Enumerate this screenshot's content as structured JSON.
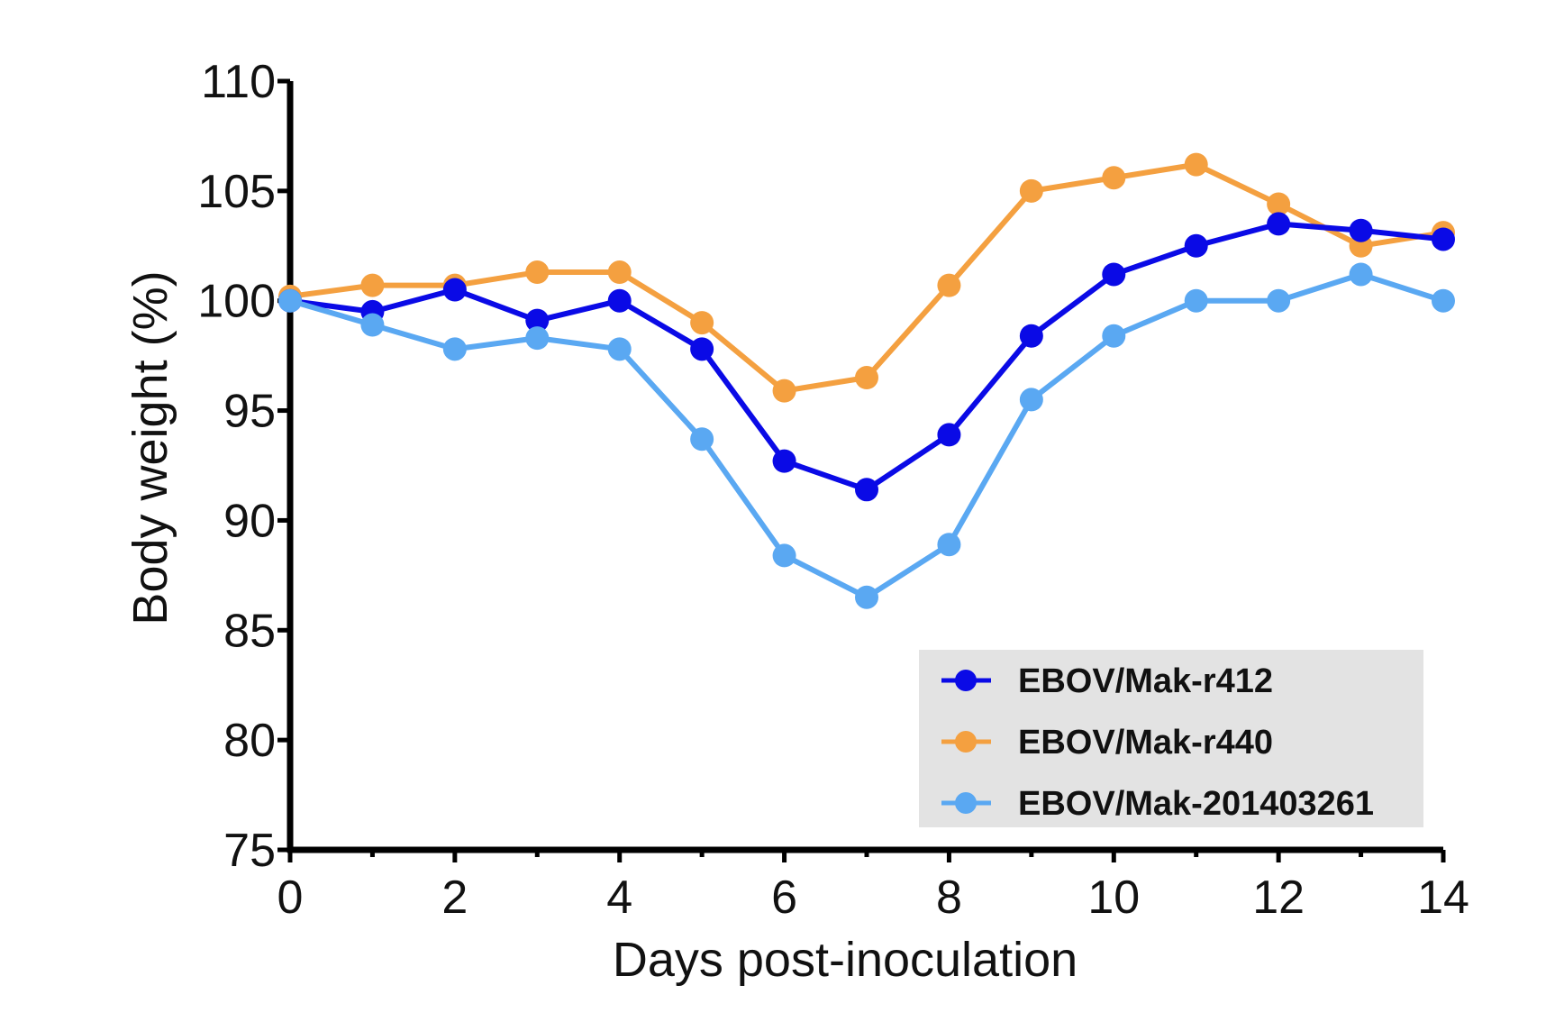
{
  "chart_data": {
    "type": "line",
    "title": "",
    "xlabel": "Days post-inoculation",
    "ylabel": "Body weight (%)",
    "xlim": [
      0,
      14
    ],
    "ylim": [
      75,
      110
    ],
    "xticks": [
      "0",
      "2",
      "4",
      "6",
      "8",
      "10",
      "12",
      "14"
    ],
    "yticks": [
      "75",
      "80",
      "85",
      "90",
      "95",
      "100",
      "105",
      "110"
    ],
    "x": [
      0,
      1,
      2,
      3,
      4,
      5,
      6,
      7,
      8,
      9,
      10,
      11,
      12,
      13,
      14
    ],
    "grid": false,
    "legend_position": "bottom-right",
    "series": [
      {
        "name": "EBOV/Mak-r440",
        "color": "#f4a040",
        "values": [
          100.2,
          100.7,
          100.7,
          101.3,
          101.3,
          99.0,
          95.9,
          96.5,
          100.7,
          105.0,
          105.6,
          106.2,
          104.4,
          102.5,
          103.1
        ]
      },
      {
        "name": "EBOV/Mak-r412",
        "color": "#0a0ae6",
        "values": [
          100.0,
          99.5,
          100.5,
          99.1,
          100.0,
          97.8,
          92.7,
          91.4,
          93.9,
          98.4,
          101.2,
          102.5,
          103.5,
          103.2,
          102.8
        ]
      },
      {
        "name": "EBOV/Mak-201403261",
        "color": "#5aa8f2",
        "values": [
          100.0,
          98.9,
          97.8,
          98.3,
          97.8,
          93.7,
          88.4,
          86.5,
          88.9,
          95.5,
          98.4,
          100.0,
          100.0,
          101.2,
          100.0
        ]
      }
    ],
    "legend_order": [
      "EBOV/Mak-r412",
      "EBOV/Mak-r440",
      "EBOV/Mak-201403261"
    ]
  },
  "colors": {
    "axis": "#000000",
    "legend_background": "#e3e3e3",
    "text": "#111111"
  }
}
